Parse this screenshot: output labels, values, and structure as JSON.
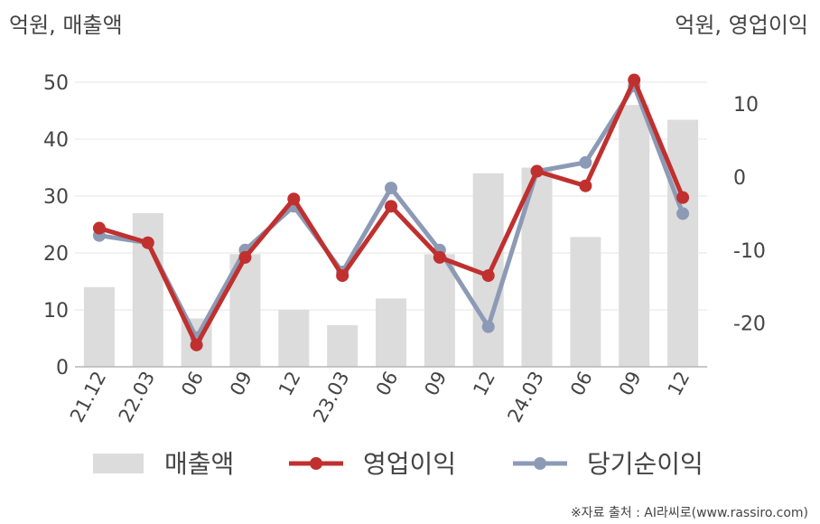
{
  "chart_data": {
    "type": "bar+line",
    "categories": [
      "21.12",
      "22.03",
      "06",
      "09",
      "12",
      "23.03",
      "06",
      "09",
      "12",
      "24.03",
      "06",
      "09",
      "12"
    ],
    "left_axis": {
      "unit_label": "억원, 매출액",
      "ylim": [
        0,
        50
      ],
      "ticks": [
        0,
        10,
        20,
        30,
        40,
        50
      ]
    },
    "right_axis": {
      "unit_label": "억원, 영업이익",
      "ticks": [
        -20,
        -10,
        0,
        10
      ]
    },
    "series": [
      {
        "name": "매출액",
        "type": "bar",
        "axis": "left",
        "color": "#dcdcdc",
        "values": [
          14,
          27,
          8.5,
          19.8,
          10,
          7.3,
          12,
          19.8,
          34,
          35,
          22.8,
          46,
          43.4
        ]
      },
      {
        "name": "영업이익",
        "type": "line",
        "axis": "right",
        "color": "#c0302e",
        "values": [
          -7,
          -9,
          -23,
          -11,
          -3,
          -13.5,
          -4,
          -11,
          -13.5,
          0.8,
          -1.2,
          13.3,
          -2.8
        ]
      },
      {
        "name": "당기순이익",
        "type": "line",
        "axis": "right",
        "color": "#8c9ab5",
        "values": [
          -8,
          -9,
          -22,
          -10,
          -4,
          -13,
          -1.5,
          -10,
          -20.5,
          0.8,
          2,
          12.5,
          -5
        ]
      }
    ],
    "legend_position": "bottom",
    "grid": true
  },
  "source_note": "※자료 출처 : AI라씨로(www.rassiro.com)"
}
